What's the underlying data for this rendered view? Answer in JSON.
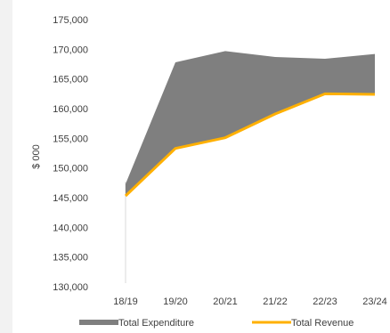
{
  "chart_data": {
    "type": "area",
    "title": "",
    "ylabel": "$ 000",
    "xlabel": "",
    "categories": [
      "18/19",
      "19/20",
      "20/21",
      "21/22",
      "22/23",
      "23/24"
    ],
    "ylim": [
      130000,
      175000
    ],
    "yticks": [
      130000,
      135000,
      140000,
      145000,
      150000,
      155000,
      160000,
      165000,
      170000,
      175000
    ],
    "ytick_labels": [
      "130,000",
      "135,000",
      "140,000",
      "145,000",
      "150,000",
      "155,000",
      "160,000",
      "165,000",
      "170,000",
      "175,000"
    ],
    "series": [
      {
        "name": "Total Expenditure",
        "kind": "area",
        "color": "#7f7f7f",
        "values": [
          147300,
          167800,
          169700,
          168700,
          168400,
          169200
        ]
      },
      {
        "name": "Total Revenue",
        "kind": "line",
        "color": "#ffb000",
        "values": [
          145300,
          153300,
          155100,
          159100,
          162500,
          162400
        ]
      }
    ],
    "grid": false,
    "legend": "bottom"
  }
}
